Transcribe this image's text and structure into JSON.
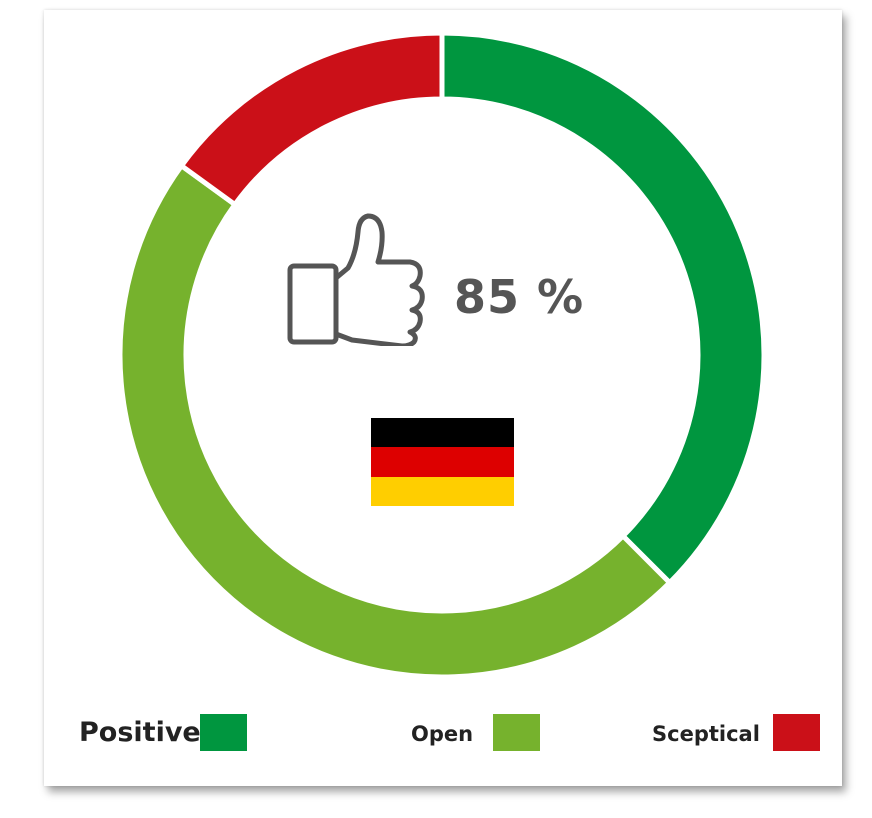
{
  "chart_data": {
    "type": "pie",
    "donut": true,
    "categories": [
      "Positive",
      "Open",
      "Sceptical"
    ],
    "values": [
      37.5,
      47.5,
      15
    ],
    "colors": [
      "#00963f",
      "#76b22d",
      "#cb1018"
    ],
    "legend_position": "bottom",
    "center_value": "85 %",
    "center_icon": "thumbs-up-icon",
    "center_flag": "germany-flag",
    "flag_colors": [
      "#000000",
      "#dd0000",
      "#ffce00"
    ]
  },
  "legend": [
    {
      "label": "Positive",
      "color": "#00963f"
    },
    {
      "label": "Open",
      "color": "#76b22d"
    },
    {
      "label": "Sceptical",
      "color": "#cb1018"
    }
  ]
}
